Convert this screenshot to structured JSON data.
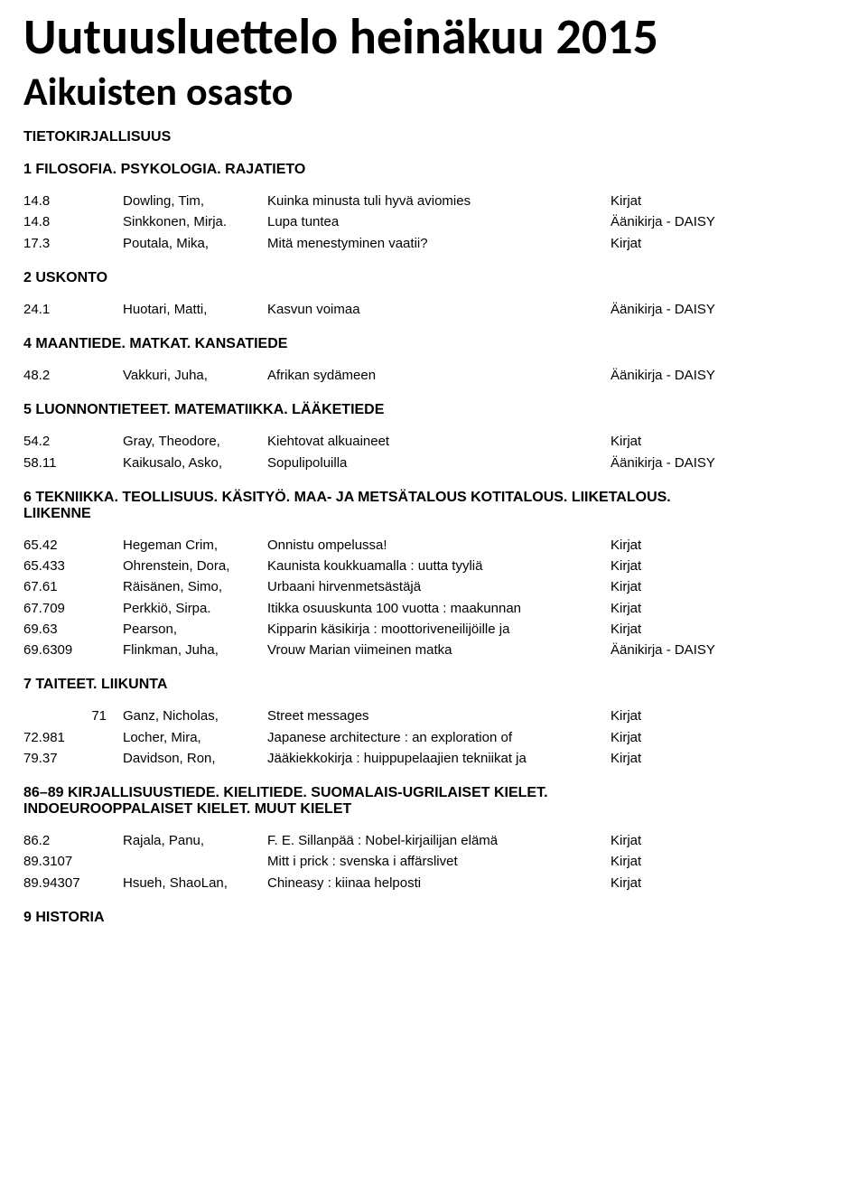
{
  "pageTitle": "Uutuusluettelo heinäkuu 2015",
  "subtitle": "Aikuisten osasto",
  "sections": [
    {
      "heading": "TIETOKIRJALLISUUS",
      "rows": []
    },
    {
      "heading": "1 FILOSOFIA. PSYKOLOGIA. RAJATIETO",
      "rows": [
        {
          "code": "14.8",
          "author": "Dowling, Tim,",
          "title": "Kuinka minusta tuli hyvä aviomies",
          "format": "Kirjat"
        },
        {
          "code": "14.8",
          "author": "Sinkkonen, Mirja.",
          "title": "Lupa tuntea",
          "format": "Äänikirja - DAISY"
        },
        {
          "code": "17.3",
          "author": "Poutala, Mika,",
          "title": "Mitä menestyminen vaatii?",
          "format": "Kirjat"
        }
      ]
    },
    {
      "heading": "2 USKONTO",
      "rows": [
        {
          "code": "24.1",
          "author": "Huotari, Matti,",
          "title": "Kasvun voimaa",
          "format": "Äänikirja - DAISY"
        }
      ]
    },
    {
      "heading": "4 MAANTIEDE. MATKAT. KANSATIEDE",
      "rows": [
        {
          "code": "48.2",
          "author": "Vakkuri, Juha,",
          "title": "Afrikan sydämeen",
          "format": "Äänikirja - DAISY"
        }
      ]
    },
    {
      "heading": "5 LUONNONTIETEET. MATEMATIIKKA. LÄÄKETIEDE",
      "rows": [
        {
          "code": "54.2",
          "author": "Gray, Theodore,",
          "title": "Kiehtovat alkuaineet",
          "format": "Kirjat"
        },
        {
          "code": "58.11",
          "author": "Kaikusalo, Asko,",
          "title": "Sopulipoluilla",
          "format": "Äänikirja - DAISY"
        }
      ]
    },
    {
      "heading": "6 TEKNIIKKA. TEOLLISUUS. KÄSITYÖ. MAA- JA METSÄTALOUS KOTITALOUS. LIIKETALOUS. LIIKENNE",
      "rows": [
        {
          "code": "65.42",
          "author": "Hegeman Crim,",
          "title": "Onnistu ompelussa!",
          "format": "Kirjat"
        },
        {
          "code": "65.433",
          "author": "Ohrenstein, Dora,",
          "title": "Kaunista koukkuamalla : uutta tyyliä",
          "format": "Kirjat"
        },
        {
          "code": "67.61",
          "author": "Räisänen, Simo,",
          "title": "Urbaani hirvenmetsästäjä",
          "format": "Kirjat"
        },
        {
          "code": "67.709",
          "author": "Perkkiö, Sirpa.",
          "title": "Itikka osuuskunta 100 vuotta : maakunnan",
          "format": "Kirjat"
        },
        {
          "code": "69.63",
          "author": "Pearson,",
          "title": "Kipparin käsikirja : moottoriveneilijöille ja",
          "format": "Kirjat"
        },
        {
          "code": "69.6309",
          "author": "Flinkman, Juha,",
          "title": "Vrouw Marian viimeinen matka",
          "format": "Äänikirja - DAISY"
        }
      ]
    },
    {
      "heading": "7 TAITEET. LIIKUNTA",
      "rows": [
        {
          "code": "71",
          "codeAlign": "right",
          "author": "Ganz, Nicholas,",
          "title": "Street messages",
          "format": "Kirjat"
        },
        {
          "code": "72.981",
          "author": "Locher, Mira,",
          "title": "Japanese architecture : an exploration of",
          "format": "Kirjat"
        },
        {
          "code": "79.37",
          "author": "Davidson, Ron,",
          "title": "Jääkiekkokirja : huippupelaajien tekniikat ja",
          "format": "Kirjat"
        }
      ]
    },
    {
      "heading": "86–89 KIRJALLISUUSTIEDE. KIELITIEDE. SUOMALAIS-UGRILAISET KIELET. INDOEUROOPPALAISET KIELET. MUUT KIELET",
      "rows": [
        {
          "code": "86.2",
          "author": "Rajala, Panu,",
          "title": "F. E. Sillanpää : Nobel-kirjailijan elämä",
          "format": "Kirjat"
        },
        {
          "code": "89.3107",
          "author": "",
          "title": "Mitt i prick : svenska i affärslivet",
          "format": "Kirjat"
        },
        {
          "code": "89.94307",
          "author": "Hsueh, ShaoLan,",
          "title": "Chineasy : kiinaa helposti",
          "format": "Kirjat"
        }
      ]
    },
    {
      "heading": "9 HISTORIA",
      "rows": []
    }
  ]
}
